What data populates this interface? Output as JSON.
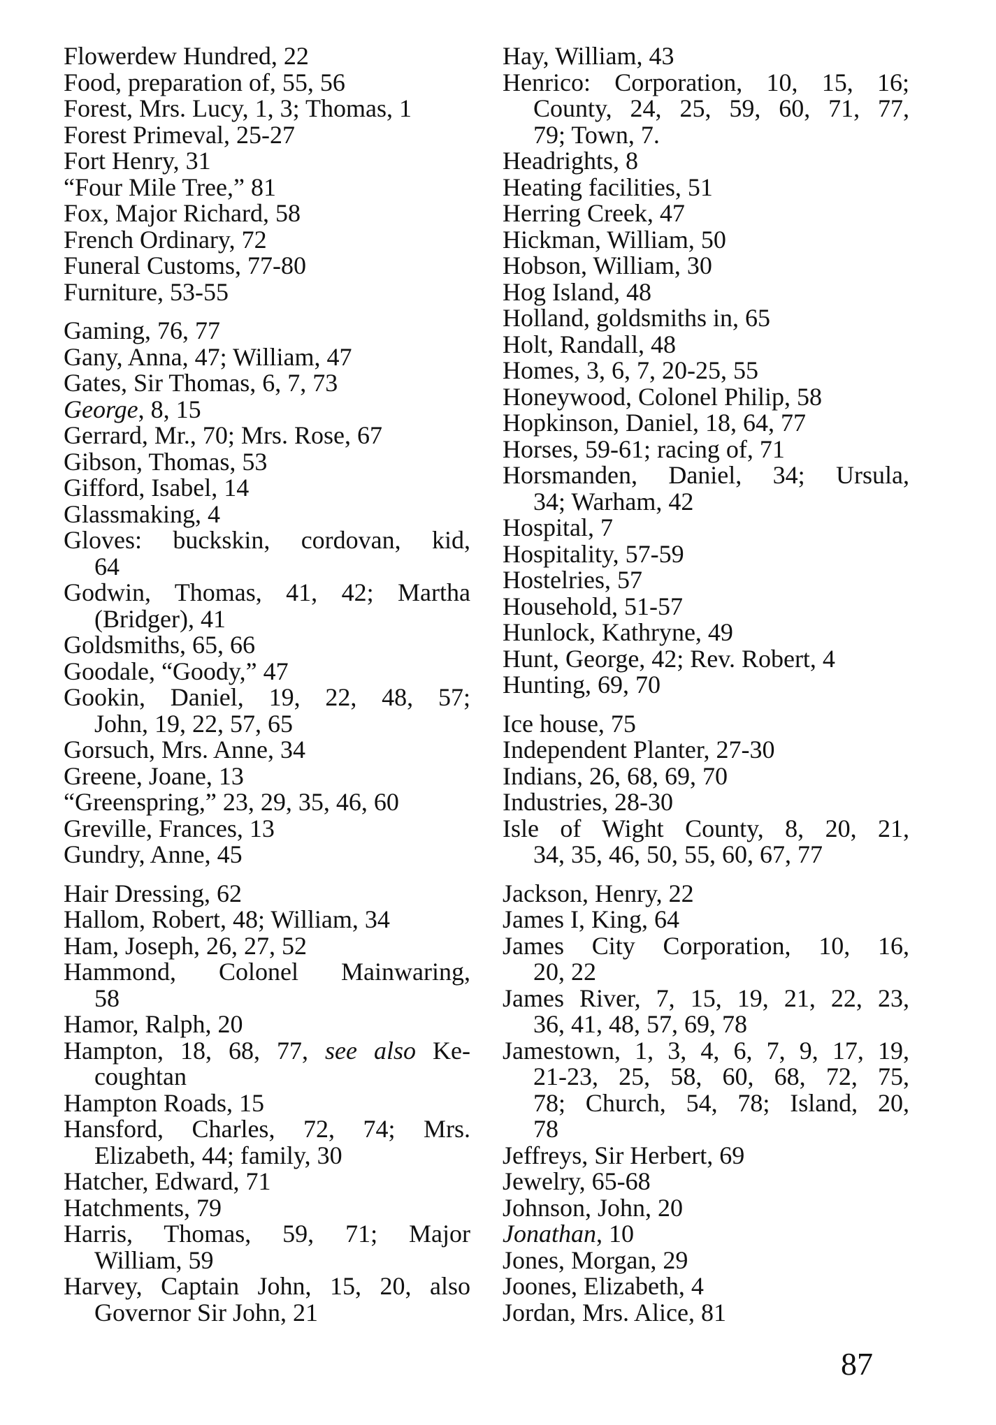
{
  "left_column": {
    "sections": [
      [
        [
          "Flowerdew Hundred, 22"
        ],
        [
          "Food, preparation of, 55, 56"
        ],
        [
          "Forest, Mrs. Lucy, 1, 3; Thomas, 1"
        ],
        [
          "Forest Primeval, 25-27"
        ],
        [
          "Fort Henry, 31"
        ],
        [
          "“Four Mile Tree,” 81"
        ],
        [
          "Fox, Major Richard, 58"
        ],
        [
          "French Ordinary, 72"
        ],
        [
          "Funeral Customs, 77-80"
        ],
        [
          "Furniture, 53-55"
        ]
      ],
      [
        [
          "Gaming, 76, 77"
        ],
        [
          "Gany, Anna, 47; William, 47"
        ],
        [
          "Gates, Sir Thomas, 6, 7, 73"
        ],
        [
          [
            {
              "italic": "George"
            },
            ", 8, 15"
          ]
        ],
        [
          "Gerrard, Mr., 70; Mrs. Rose, 67"
        ],
        [
          "Gibson, Thomas, 53"
        ],
        [
          "Gifford, Isabel, 14"
        ],
        [
          "Glassmaking, 4"
        ],
        [
          "Gloves: buckskin, cordovan, kid,",
          "64"
        ],
        [
          "Godwin, Thomas, 41, 42; Martha",
          "(Bridger), 41"
        ],
        [
          "Goldsmiths, 65, 66"
        ],
        [
          "Goodale, “Goody,” 47"
        ],
        [
          "Gookin, Daniel, 19, 22, 48, 57;",
          "John, 19, 22, 57, 65"
        ],
        [
          "Gorsuch, Mrs. Anne, 34"
        ],
        [
          "Greene, Joane, 13"
        ],
        [
          "“Greenspring,” 23, 29, 35, 46, 60"
        ],
        [
          "Greville, Frances, 13"
        ],
        [
          "Gundry, Anne, 45"
        ]
      ],
      [
        [
          "Hair Dressing, 62"
        ],
        [
          "Hallom, Robert, 48; William, 34"
        ],
        [
          "Ham, Joseph, 26, 27, 52"
        ],
        [
          "Hammond, Colonel Mainwaring,",
          "58"
        ],
        [
          "Hamor, Ralph, 20"
        ],
        [
          [
            "Hampton, 18, 68, 77, ",
            {
              "italic": "see also"
            },
            " Ke-"
          ],
          "coughtan"
        ],
        [
          "Hampton Roads, 15"
        ],
        [
          "Hansford, Charles, 72, 74; Mrs.",
          "Elizabeth, 44; family, 30"
        ],
        [
          "Hatcher, Edward, 71"
        ],
        [
          "Hatchments, 79"
        ],
        [
          "Harris, Thomas, 59, 71; Major",
          "William, 59"
        ],
        [
          "Harvey, Captain John, 15, 20, also",
          "Governor Sir John, 21"
        ]
      ]
    ]
  },
  "right_column": {
    "sections": [
      [
        [
          "Hay, William, 43"
        ],
        [
          "Henrico: Corporation, 10, 15, 16;",
          "County, 24, 25, 59, 60, 71, 77,",
          "79; Town, 7."
        ],
        [
          "Headrights, 8"
        ],
        [
          "Heating facilities, 51"
        ],
        [
          "Herring Creek, 47"
        ],
        [
          "Hickman, William, 50"
        ],
        [
          "Hobson, William, 30"
        ],
        [
          "Hog Island, 48"
        ],
        [
          "Holland, goldsmiths in, 65"
        ],
        [
          "Holt, Randall, 48"
        ],
        [
          "Homes, 3, 6, 7, 20-25, 55"
        ],
        [
          "Honeywood, Colonel Philip, 58"
        ],
        [
          "Hopkinson, Daniel, 18, 64, 77"
        ],
        [
          "Horses, 59-61; racing of, 71"
        ],
        [
          "Horsmanden, Daniel, 34; Ursula,",
          "34; Warham, 42"
        ],
        [
          "Hospital, 7"
        ],
        [
          "Hospitality, 57-59"
        ],
        [
          "Hostelries, 57"
        ],
        [
          "Household, 51-57"
        ],
        [
          "Hunlock, Kathryne, 49"
        ],
        [
          "Hunt, George, 42; Rev. Robert, 4"
        ],
        [
          "Hunting, 69, 70"
        ]
      ],
      [
        [
          "Ice house, 75"
        ],
        [
          "Independent Planter, 27-30"
        ],
        [
          "Indians, 26, 68, 69, 70"
        ],
        [
          "Industries, 28-30"
        ],
        [
          "Isle of Wight County, 8, 20, 21,",
          "34, 35, 46, 50, 55, 60, 67, 77"
        ]
      ],
      [
        [
          "Jackson, Henry, 22"
        ],
        [
          "James I, King, 64"
        ],
        [
          "James City Corporation, 10, 16,",
          "20, 22"
        ],
        [
          "James River, 7, 15, 19, 21, 22, 23,",
          "36, 41, 48, 57, 69, 78"
        ],
        [
          "Jamestown, 1, 3, 4, 6, 7, 9, 17, 19,",
          "21-23, 25, 58, 60, 68, 72, 75,",
          "78; Church, 54, 78; Island, 20,",
          "78"
        ],
        [
          "Jeffreys, Sir Herbert, 69"
        ],
        [
          "Jewelry, 65-68"
        ],
        [
          "Johnson, John, 20"
        ],
        [
          [
            {
              "italic": "Jonathan"
            },
            ", 10"
          ]
        ],
        [
          "Jones, Morgan, 29"
        ],
        [
          "Joones, Elizabeth, 4"
        ],
        [
          "Jordan, Mrs. Alice, 81"
        ]
      ]
    ]
  },
  "page_number": "87"
}
